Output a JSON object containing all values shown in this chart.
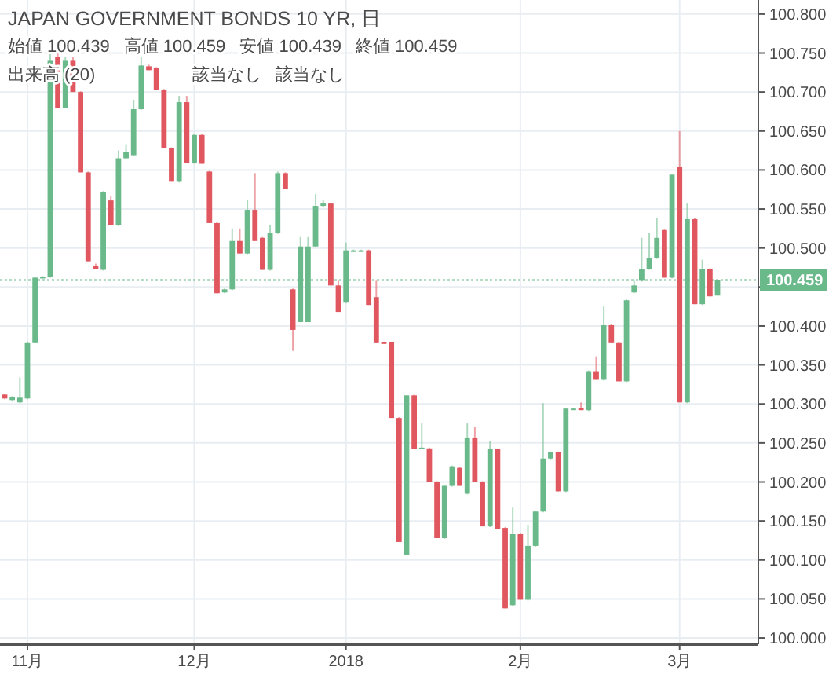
{
  "chart_data": {
    "type": "candlestick",
    "title": "JAPAN GOVERNMENT BONDS 10 YR, 日",
    "annotations": [
      "始値 100.439",
      "高値 100.459",
      "安値 100.439",
      "終値 100.459",
      "出来高 (20)",
      "該当なし",
      "該当なし"
    ],
    "categories": [
      null,
      null,
      null,
      "11月",
      null,
      null,
      null,
      null,
      null,
      null,
      null,
      null,
      null,
      null,
      null,
      null,
      null,
      null,
      null,
      null,
      null,
      null,
      null,
      null,
      null,
      "12月",
      null,
      null,
      null,
      null,
      null,
      null,
      null,
      null,
      null,
      null,
      null,
      null,
      null,
      null,
      null,
      null,
      null,
      null,
      null,
      "2018",
      null,
      null,
      null,
      null,
      null,
      null,
      null,
      null,
      null,
      null,
      null,
      null,
      null,
      null,
      null,
      null,
      null,
      null,
      null,
      null,
      null,
      null,
      "2月",
      null,
      null,
      null,
      null,
      null,
      null,
      null,
      null,
      null,
      null,
      null,
      null,
      null,
      null,
      null,
      null,
      null,
      null,
      null,
      null,
      "3月",
      null,
      null,
      null,
      null,
      null
    ],
    "ohlc": [
      [
        100.312,
        100.313,
        100.306,
        100.307
      ],
      [
        100.305,
        100.31,
        100.303,
        100.309
      ],
      [
        100.302,
        100.334,
        100.301,
        100.308
      ],
      [
        100.307,
        100.38,
        100.306,
        100.378
      ],
      [
        100.378,
        100.463,
        100.378,
        100.462
      ],
      [
        100.462,
        100.464,
        100.461,
        100.463
      ],
      [
        100.463,
        100.75,
        100.462,
        100.74
      ],
      [
        100.745,
        100.75,
        100.68,
        100.68
      ],
      [
        100.68,
        100.745,
        100.679,
        100.74
      ],
      [
        100.74,
        100.745,
        100.7,
        100.7
      ],
      [
        100.7,
        100.701,
        100.597,
        100.597
      ],
      [
        100.597,
        100.598,
        100.483,
        100.483
      ],
      [
        100.477,
        100.48,
        100.473,
        100.473
      ],
      [
        100.472,
        100.573,
        100.471,
        100.572
      ],
      [
        100.561,
        100.566,
        100.529,
        100.529
      ],
      [
        100.529,
        100.625,
        100.528,
        100.615
      ],
      [
        100.615,
        100.633,
        100.614,
        100.623
      ],
      [
        100.619,
        100.69,
        100.618,
        100.678
      ],
      [
        100.678,
        100.745,
        100.677,
        100.734
      ],
      [
        100.733,
        100.735,
        100.728,
        100.728
      ],
      [
        100.731,
        100.732,
        100.703,
        100.703
      ],
      [
        100.703,
        100.704,
        100.628,
        100.628
      ],
      [
        100.628,
        100.629,
        100.585,
        100.585
      ],
      [
        100.585,
        100.695,
        100.584,
        100.687
      ],
      [
        100.687,
        100.695,
        100.609,
        100.609
      ],
      [
        100.609,
        100.646,
        100.608,
        100.645
      ],
      [
        100.645,
        100.646,
        100.608,
        100.608
      ],
      [
        100.598,
        100.599,
        100.532,
        100.532
      ],
      [
        100.532,
        100.533,
        100.442,
        100.442
      ],
      [
        100.443,
        100.448,
        100.442,
        100.447
      ],
      [
        100.447,
        100.525,
        100.446,
        100.509
      ],
      [
        100.509,
        100.525,
        100.493,
        100.493
      ],
      [
        100.493,
        100.562,
        100.492,
        100.549
      ],
      [
        100.549,
        100.596,
        100.509,
        100.509
      ],
      [
        100.513,
        100.514,
        100.472,
        100.472
      ],
      [
        100.472,
        100.529,
        100.471,
        100.519
      ],
      [
        100.519,
        100.598,
        100.518,
        100.596
      ],
      [
        100.596,
        100.597,
        100.576,
        100.576
      ],
      [
        100.447,
        100.448,
        100.368,
        100.395
      ],
      [
        100.405,
        100.514,
        100.405,
        100.502
      ],
      [
        100.405,
        100.514,
        100.405,
        100.502
      ],
      [
        100.502,
        100.569,
        100.502,
        100.554
      ],
      [
        100.554,
        100.562,
        100.553,
        100.557
      ],
      [
        100.557,
        100.558,
        100.452,
        100.452
      ],
      [
        100.452,
        100.458,
        100.418,
        100.418
      ],
      [
        100.43,
        100.507,
        100.429,
        100.497
      ],
      [
        100.497,
        100.498,
        100.496,
        100.497
      ],
      [
        100.497,
        100.498,
        100.496,
        100.497
      ],
      [
        100.497,
        100.498,
        100.427,
        100.427
      ],
      [
        100.437,
        100.458,
        100.378,
        100.378
      ],
      [
        100.379,
        100.38,
        100.378,
        100.379
      ],
      [
        100.379,
        100.379,
        100.282,
        100.282
      ],
      [
        100.282,
        100.283,
        100.123,
        100.123
      ],
      [
        100.106,
        100.311,
        100.106,
        100.311
      ],
      [
        100.311,
        100.312,
        100.242,
        100.242
      ],
      [
        100.243,
        100.275,
        100.242,
        100.244
      ],
      [
        100.243,
        100.244,
        100.2,
        100.2
      ],
      [
        100.2,
        100.201,
        100.128,
        100.128
      ],
      [
        100.128,
        100.196,
        100.127,
        100.195
      ],
      [
        100.195,
        100.221,
        100.194,
        100.22
      ],
      [
        100.218,
        100.219,
        100.195,
        100.195
      ],
      [
        100.185,
        100.275,
        100.184,
        100.257
      ],
      [
        100.257,
        100.271,
        100.2,
        100.2
      ],
      [
        100.2,
        100.201,
        100.143,
        100.143
      ],
      [
        100.143,
        100.252,
        100.142,
        100.242
      ],
      [
        100.242,
        100.243,
        100.14,
        100.14
      ],
      [
        100.141,
        100.142,
        100.038,
        100.038
      ],
      [
        100.042,
        100.167,
        100.041,
        100.133
      ],
      [
        100.133,
        100.134,
        100.049,
        100.049
      ],
      [
        100.049,
        100.145,
        100.048,
        100.118
      ],
      [
        100.118,
        100.163,
        100.117,
        100.162
      ],
      [
        100.162,
        100.301,
        100.161,
        100.23
      ],
      [
        100.23,
        100.239,
        100.229,
        100.238
      ],
      [
        100.238,
        100.239,
        100.188,
        100.188
      ],
      [
        100.188,
        100.295,
        100.187,
        100.294
      ],
      [
        100.294,
        100.295,
        100.293,
        100.294
      ],
      [
        100.295,
        100.302,
        100.292,
        100.292
      ],
      [
        100.292,
        100.343,
        100.291,
        100.342
      ],
      [
        100.342,
        100.361,
        100.331,
        100.331
      ],
      [
        100.331,
        100.425,
        100.33,
        100.401
      ],
      [
        100.401,
        100.402,
        100.378,
        100.378
      ],
      [
        100.378,
        100.379,
        100.329,
        100.329
      ],
      [
        100.329,
        100.434,
        100.328,
        100.433
      ],
      [
        100.443,
        100.458,
        100.442,
        100.452
      ],
      [
        100.458,
        100.513,
        100.457,
        100.473
      ],
      [
        100.473,
        100.519,
        100.472,
        100.487
      ],
      [
        100.487,
        100.539,
        100.486,
        100.513
      ],
      [
        100.523,
        100.524,
        100.462,
        100.462
      ],
      [
        100.462,
        100.595,
        100.461,
        100.594
      ],
      [
        100.604,
        100.65,
        100.302,
        100.302
      ],
      [
        100.302,
        100.557,
        100.301,
        100.537
      ],
      [
        100.537,
        100.538,
        100.428,
        100.428
      ],
      [
        100.428,
        100.485,
        100.427,
        100.473
      ],
      [
        100.473,
        100.474,
        100.438,
        100.438
      ],
      [
        100.439,
        100.459,
        100.439,
        100.459
      ]
    ],
    "colors": [
      "#e0575f",
      "#6ab98a",
      "#6ab98a",
      "#6ab98a",
      "#6ab98a",
      "#6ab98a",
      "#6ab98a",
      "#e0575f",
      "#6ab98a",
      "#e0575f",
      "#e0575f",
      "#e0575f",
      "#e0575f",
      "#6ab98a",
      "#e0575f",
      "#6ab98a",
      "#6ab98a",
      "#6ab98a",
      "#6ab98a",
      "#e0575f",
      "#e0575f",
      "#e0575f",
      "#e0575f",
      "#6ab98a",
      "#e0575f",
      "#6ab98a",
      "#e0575f",
      "#e0575f",
      "#e0575f",
      "#6ab98a",
      "#6ab98a",
      "#e0575f",
      "#6ab98a",
      "#e0575f",
      "#e0575f",
      "#6ab98a",
      "#6ab98a",
      "#e0575f",
      "#e0575f",
      "#6ab98a",
      "#6ab98a",
      "#6ab98a",
      "#6ab98a",
      "#e0575f",
      "#e0575f",
      "#6ab98a",
      "#6ab98a",
      "#6ab98a",
      "#e0575f",
      "#e0575f",
      "#e0575f",
      "#e0575f",
      "#e0575f",
      "#6ab98a",
      "#e0575f",
      "#6ab98a",
      "#e0575f",
      "#e0575f",
      "#6ab98a",
      "#6ab98a",
      "#e0575f",
      "#6ab98a",
      "#e0575f",
      "#e0575f",
      "#6ab98a",
      "#e0575f",
      "#e0575f",
      "#6ab98a",
      "#e0575f",
      "#6ab98a",
      "#6ab98a",
      "#6ab98a",
      "#6ab98a",
      "#e0575f",
      "#6ab98a",
      "#6ab98a",
      "#e0575f",
      "#6ab98a",
      "#e0575f",
      "#6ab98a",
      "#e0575f",
      "#e0575f",
      "#6ab98a",
      "#6ab98a",
      "#6ab98a",
      "#6ab98a",
      "#6ab98a",
      "#e0575f",
      "#6ab98a",
      "#e0575f",
      "#6ab98a",
      "#e0575f",
      "#6ab98a",
      "#e0575f",
      "#6ab98a"
    ],
    "ylim": [
      99.992,
      100.818
    ],
    "yticks": [
      {
        "value": 100.0,
        "label": "100.000"
      },
      {
        "value": 100.05,
        "label": "100.050"
      },
      {
        "value": 100.1,
        "label": "100.100"
      },
      {
        "value": 100.15,
        "label": "100.150"
      },
      {
        "value": 100.2,
        "label": "100.200"
      },
      {
        "value": 100.25,
        "label": "100.250"
      },
      {
        "value": 100.3,
        "label": "100.300"
      },
      {
        "value": 100.35,
        "label": "100.350"
      },
      {
        "value": 100.4,
        "label": "100.400"
      },
      {
        "value": 100.45,
        "label": null
      },
      {
        "value": 100.5,
        "label": "100.500"
      },
      {
        "value": 100.55,
        "label": "100.550"
      },
      {
        "value": 100.6,
        "label": "100.600"
      },
      {
        "value": 100.65,
        "label": "100.650"
      },
      {
        "value": 100.7,
        "label": "100.700"
      },
      {
        "value": 100.75,
        "label": "100.750"
      },
      {
        "value": 100.8,
        "label": "100.800"
      }
    ],
    "ref_lines": [
      {
        "axis": "y",
        "value": 100.459,
        "label": "100.459",
        "color": "#6ab98a",
        "line_style": "dotted"
      }
    ],
    "grid": true
  }
}
